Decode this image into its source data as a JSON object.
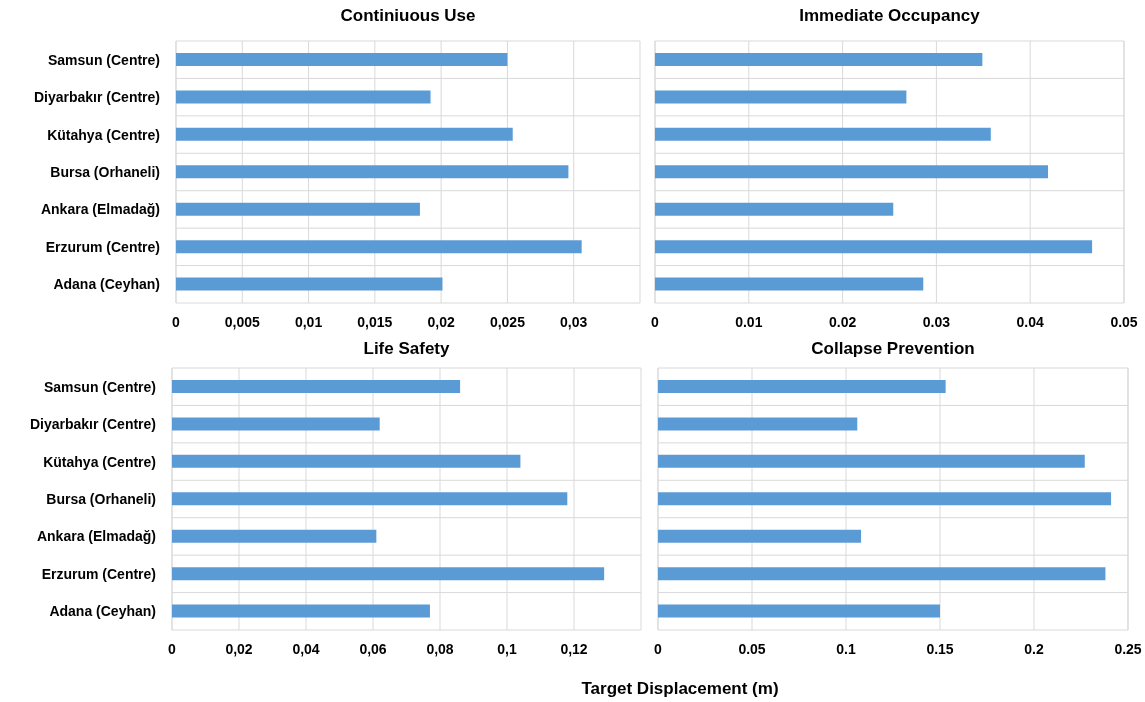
{
  "chart_data": [
    {
      "type": "bar",
      "orientation": "horizontal",
      "title": "Continiuous Use",
      "categories": [
        "Samsun (Centre)",
        "Diyarbakır (Centre)",
        "Kütahya (Centre)",
        "Bursa (Orhaneli)",
        "Ankara (Elmadağ)",
        "Erzurum (Centre)",
        "Adana (Ceyhan)"
      ],
      "values": [
        0.025,
        0.0192,
        0.0254,
        0.0296,
        0.0184,
        0.0306,
        0.0201
      ],
      "color": "#5b9bd5",
      "xlim": [
        0,
        0.035
      ],
      "xticks": [
        0,
        {
          "value": 0.005,
          "label": "0,005"
        },
        {
          "value": 0.01,
          "label": "0,01"
        },
        {
          "value": 0.015,
          "label": "0,015"
        },
        {
          "value": 0.02,
          "label": "0,02"
        },
        {
          "value": 0.025,
          "label": "0,025"
        },
        {
          "value": 0.03,
          "label": "0,03"
        }
      ],
      "grid": true
    },
    {
      "type": "bar",
      "orientation": "horizontal",
      "title": "Immediate Occupancy",
      "categories": [
        null,
        null,
        null,
        null,
        null,
        null,
        null
      ],
      "values": [
        0.0349,
        0.0268,
        0.0358,
        0.0419,
        0.0254,
        0.0466,
        0.0286
      ],
      "color": "#5b9bd5",
      "xlim": [
        0,
        0.05
      ],
      "xticks": [
        0,
        0.01,
        0.02,
        0.03,
        0.04,
        0.05
      ],
      "grid": true,
      "tick_labels": "x"
    },
    {
      "type": "bar",
      "orientation": "horizontal",
      "title": "Life Safety",
      "xlabel": "Target Displacement (m)",
      "categories": [
        "Samsun (Centre)",
        "Diyarbakır (Centre)",
        "Kütahya (Centre)",
        "Bursa (Orhaneli)",
        "Ankara (Elmadağ)",
        "Erzurum (Centre)",
        "Adana (Ceyhan)"
      ],
      "values": [
        0.086,
        0.062,
        0.104,
        0.118,
        0.061,
        0.129,
        0.077
      ],
      "color": "#5b9bd5",
      "xlim": [
        0,
        0.14
      ],
      "xticks": [
        0,
        {
          "value": 0.02,
          "label": "0,02"
        },
        {
          "value": 0.04,
          "label": "0,04"
        },
        {
          "value": 0.06,
          "label": "0,06"
        },
        {
          "value": 0.08,
          "label": "0,08"
        },
        {
          "value": 0.1,
          "label": "0,1"
        },
        {
          "value": 0.12,
          "label": "0,12"
        }
      ],
      "grid": true
    },
    {
      "type": "bar",
      "orientation": "horizontal",
      "title": "Collapse Prevention",
      "categories": [
        null,
        null,
        null,
        null,
        null,
        null,
        null
      ],
      "values": [
        0.153,
        0.106,
        0.227,
        0.241,
        0.108,
        0.238,
        0.15
      ],
      "color": "#5b9bd5",
      "xlim": [
        0,
        0.25
      ],
      "xticks": [
        0,
        0.05,
        0.1,
        0.15,
        0.2,
        0.25
      ],
      "grid": true,
      "tick_labels": "x"
    }
  ]
}
